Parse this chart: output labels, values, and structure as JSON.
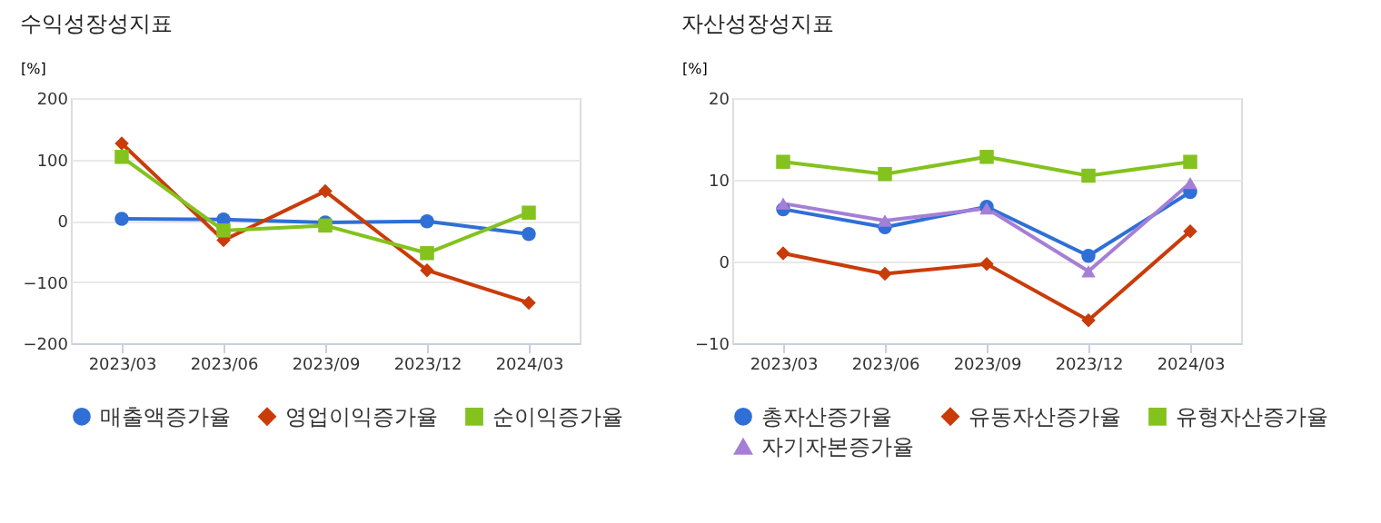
{
  "chart_data": [
    {
      "type": "line",
      "title": "수익성장성지표",
      "ylabel": "[%]",
      "categories": [
        "2023/03",
        "2023/06",
        "2023/09",
        "2023/12",
        "2024/03"
      ],
      "series": [
        {
          "name": "매출액증가율",
          "color": "#2f6fd6",
          "marker": "circle",
          "values": [
            3,
            2,
            -3,
            -1,
            -22
          ]
        },
        {
          "name": "영업이익증가율",
          "color": "#c93c0a",
          "marker": "diamond",
          "values": [
            126,
            -32,
            48,
            -81,
            -134
          ]
        },
        {
          "name": "순이익증가율",
          "color": "#84c21e",
          "marker": "square",
          "values": [
            104,
            -16,
            -8,
            -53,
            13
          ]
        }
      ],
      "ylim": [
        -200,
        200
      ],
      "yticks": [
        -200,
        -100,
        0,
        100,
        200
      ],
      "grid": "y",
      "legend": "bottom"
    },
    {
      "type": "line",
      "title": "자산성장성지표",
      "ylabel": "[%]",
      "categories": [
        "2023/03",
        "2023/06",
        "2023/09",
        "2023/12",
        "2024/03"
      ],
      "series": [
        {
          "name": "총자산증가율",
          "color": "#2f6fd6",
          "marker": "circle",
          "values": [
            6.4,
            4.2,
            6.7,
            0.7,
            8.5
          ]
        },
        {
          "name": "유동자산증가율",
          "color": "#c93c0a",
          "marker": "diamond",
          "values": [
            1.0,
            -1.5,
            -0.3,
            -7.2,
            3.7
          ]
        },
        {
          "name": "유형자산증가율",
          "color": "#84c21e",
          "marker": "square",
          "values": [
            12.2,
            10.7,
            12.8,
            10.5,
            12.2
          ]
        },
        {
          "name": "자기자본증가율",
          "color": "#a57fd6",
          "marker": "triangle",
          "values": [
            7.1,
            5.0,
            6.5,
            -1.2,
            9.6
          ]
        }
      ],
      "ylim": [
        -10,
        20
      ],
      "yticks": [
        -10,
        0,
        10,
        20
      ],
      "grid": "y",
      "legend": "bottom"
    }
  ]
}
